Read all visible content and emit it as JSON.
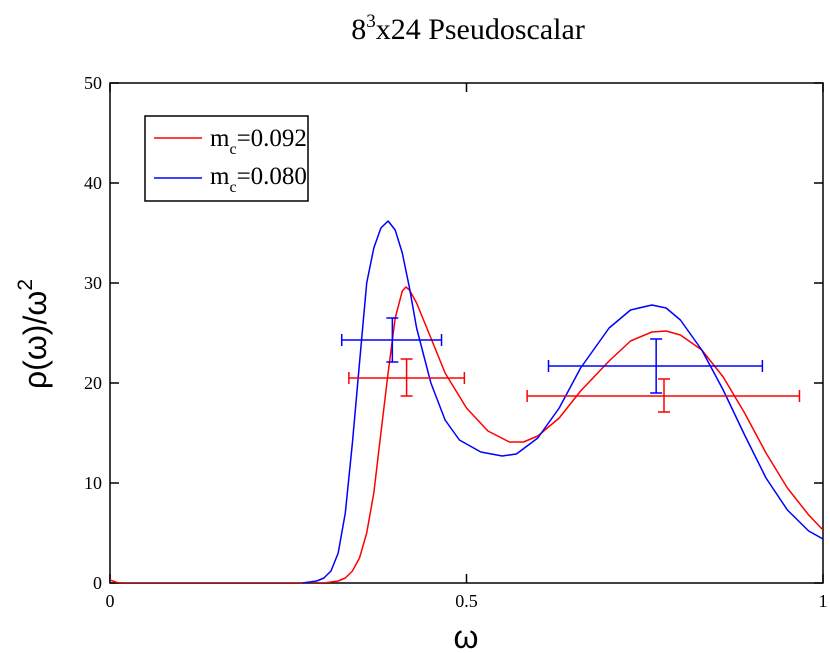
{
  "chart_data": {
    "type": "line",
    "title": {
      "base": "8",
      "sup": "3",
      "rest": "x24 Pseudoscalar"
    },
    "xlabel": "ω",
    "ylabel": {
      "base": "ρ(ω)/ω",
      "sup": "2"
    },
    "xlim": [
      0,
      1
    ],
    "ylim": [
      0,
      50
    ],
    "x_ticks": [
      {
        "value": 0,
        "label": "0"
      },
      {
        "value": 0.5,
        "label": "0.5"
      },
      {
        "value": 1,
        "label": "1"
      }
    ],
    "y_ticks": [
      {
        "value": 0,
        "label": "0"
      },
      {
        "value": 10,
        "label": "10"
      },
      {
        "value": 20,
        "label": "20"
      },
      {
        "value": 30,
        "label": "30"
      },
      {
        "value": 40,
        "label": "40"
      },
      {
        "value": 50,
        "label": "50"
      }
    ],
    "grid": false,
    "legend_position": "top-left",
    "series": [
      {
        "name": "m_c=0.092",
        "legend_label": {
          "base": "m",
          "sub": "c",
          "rest": "=0.092"
        },
        "color": "#ff0000",
        "points": [
          [
            0,
            0.3
          ],
          [
            0.01,
            0.05
          ],
          [
            0.02,
            0
          ],
          [
            0.3,
            0
          ],
          [
            0.32,
            0.2
          ],
          [
            0.33,
            0.5
          ],
          [
            0.34,
            1.2
          ],
          [
            0.35,
            2.5
          ],
          [
            0.36,
            5
          ],
          [
            0.37,
            9
          ],
          [
            0.38,
            15
          ],
          [
            0.39,
            21
          ],
          [
            0.4,
            26.5
          ],
          [
            0.41,
            29.2
          ],
          [
            0.415,
            29.6
          ],
          [
            0.42,
            29.3
          ],
          [
            0.43,
            28
          ],
          [
            0.45,
            24.5
          ],
          [
            0.47,
            21
          ],
          [
            0.5,
            17.5
          ],
          [
            0.53,
            15.2
          ],
          [
            0.56,
            14.1
          ],
          [
            0.58,
            14.1
          ],
          [
            0.6,
            14.7
          ],
          [
            0.63,
            16.5
          ],
          [
            0.66,
            19.2
          ],
          [
            0.7,
            22.2
          ],
          [
            0.73,
            24.2
          ],
          [
            0.76,
            25.1
          ],
          [
            0.78,
            25.2
          ],
          [
            0.8,
            24.8
          ],
          [
            0.83,
            23.3
          ],
          [
            0.86,
            20.6
          ],
          [
            0.89,
            17
          ],
          [
            0.92,
            13
          ],
          [
            0.95,
            9.5
          ],
          [
            0.98,
            6.8
          ],
          [
            1,
            5.3
          ]
        ]
      },
      {
        "name": "m_c=0.080",
        "legend_label": {
          "base": "m",
          "sub": "c",
          "rest": "=0.080"
        },
        "color": "#0000ff",
        "points": [
          [
            0.27,
            0
          ],
          [
            0.29,
            0.2
          ],
          [
            0.3,
            0.5
          ],
          [
            0.31,
            1.2
          ],
          [
            0.32,
            3
          ],
          [
            0.33,
            7
          ],
          [
            0.34,
            14
          ],
          [
            0.35,
            22
          ],
          [
            0.36,
            30
          ],
          [
            0.37,
            33.5
          ],
          [
            0.38,
            35.5
          ],
          [
            0.39,
            36.2
          ],
          [
            0.4,
            35.3
          ],
          [
            0.41,
            33
          ],
          [
            0.42,
            29.5
          ],
          [
            0.43,
            25.5
          ],
          [
            0.45,
            20
          ],
          [
            0.47,
            16.3
          ],
          [
            0.49,
            14.3
          ],
          [
            0.52,
            13.1
          ],
          [
            0.55,
            12.7
          ],
          [
            0.57,
            12.9
          ],
          [
            0.6,
            14.5
          ],
          [
            0.63,
            17.5
          ],
          [
            0.66,
            21.5
          ],
          [
            0.7,
            25.5
          ],
          [
            0.73,
            27.3
          ],
          [
            0.76,
            27.8
          ],
          [
            0.78,
            27.5
          ],
          [
            0.8,
            26.3
          ],
          [
            0.83,
            23.3
          ],
          [
            0.86,
            19.3
          ],
          [
            0.89,
            14.8
          ],
          [
            0.92,
            10.5
          ],
          [
            0.95,
            7.3
          ],
          [
            0.98,
            5.2
          ],
          [
            1,
            4.4
          ]
        ]
      }
    ],
    "error_markers": [
      {
        "series": "m_c=0.080",
        "color": "#0000ff",
        "x": 0.396,
        "y": 24.3,
        "x_range": [
          0.325,
          0.465
        ],
        "y_range": [
          22.1,
          26.5
        ]
      },
      {
        "series": "m_c=0.080",
        "color": "#0000ff",
        "x": 0.766,
        "y": 21.7,
        "x_range": [
          0.615,
          0.915
        ],
        "y_range": [
          19.0,
          24.4
        ]
      },
      {
        "series": "m_c=0.092",
        "color": "#ff0000",
        "x": 0.416,
        "y": 20.5,
        "x_range": [
          0.335,
          0.497
        ],
        "y_range": [
          18.7,
          22.4
        ]
      },
      {
        "series": "m_c=0.092",
        "color": "#ff0000",
        "x": 0.777,
        "y": 18.7,
        "x_range": [
          0.585,
          0.967
        ],
        "y_range": [
          17.1,
          20.4
        ]
      }
    ]
  }
}
